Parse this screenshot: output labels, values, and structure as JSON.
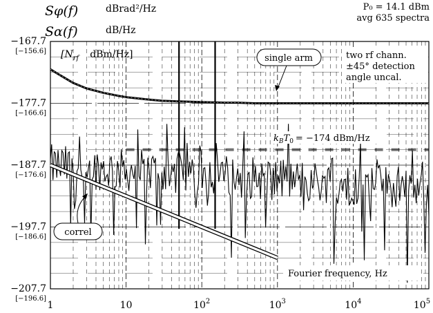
{
  "chart_data": {
    "type": "line",
    "x_scale": "log",
    "xlim": [
      1,
      100000
    ],
    "ylim": [
      -207.7,
      -167.7
    ],
    "grid": true,
    "header": {
      "s_phi_symbol": "Sφ(f)",
      "s_phi_unit": "dBrad²/Hz",
      "s_alpha_symbol": "Sα(f)",
      "s_alpha_unit": "dB/Hz",
      "p0": "P₀ = 14.1 dBm",
      "avg": "avg 635 spectra"
    },
    "y_ticks": [
      {
        "value": -167.7,
        "label": "−167.7",
        "sublabel": "[−156.6]"
      },
      {
        "value": -177.7,
        "label": "−177.7",
        "sublabel": "[−166.6]"
      },
      {
        "value": -187.7,
        "label": "−187.7",
        "sublabel": "[−176.6]"
      },
      {
        "value": -197.7,
        "label": "−197.7",
        "sublabel": "[−186.6]"
      },
      {
        "value": -207.7,
        "label": "−207.7",
        "sublabel": "[−196.6]"
      }
    ],
    "x_ticks": [
      {
        "value": 1,
        "base": "1",
        "exp": ""
      },
      {
        "value": 10,
        "base": "10",
        "exp": ""
      },
      {
        "value": 100,
        "base": "10",
        "exp": "2"
      },
      {
        "value": 1000,
        "base": "10",
        "exp": "3"
      },
      {
        "value": 10000,
        "base": "10",
        "exp": "4"
      },
      {
        "value": 100000,
        "base": "10",
        "exp": "5"
      }
    ],
    "nrf_label": "[N",
    "nrf_sub": "rf",
    "nrf_unit": "dBm/Hz]",
    "xlabel": "Fourier frequency, Hz",
    "annotations": {
      "single_arm": "single arm",
      "correl": "correl",
      "two_rf_1": "two rf chann.",
      "two_rf_2": "±45° detection",
      "two_rf_3": "angle uncal.",
      "kbt0": "kBT0 = −174 dBm/Hz",
      "kbt0_k": "k",
      "kbt0_B": "B",
      "kbt0_T": "T",
      "kbt0_0": "0",
      "kbt0_rest": "= −174 dBm/Hz"
    },
    "series": [
      {
        "name": "single arm",
        "x": [
          1,
          1.2,
          1.5,
          2,
          3,
          5,
          8,
          10,
          20,
          30,
          50,
          100,
          200,
          300,
          500,
          1000,
          3000,
          10000,
          30000,
          100000
        ],
        "y": [
          -172.2,
          -172.8,
          -173.5,
          -174.4,
          -175.3,
          -176.0,
          -176.5,
          -176.7,
          -177.1,
          -177.3,
          -177.4,
          -177.5,
          -177.6,
          -177.6,
          -177.7,
          -177.7,
          -177.7,
          -177.7,
          -177.7,
          -177.7
        ]
      },
      {
        "name": "correl",
        "x": [
          1,
          10,
          100,
          1000
        ],
        "y": [
          -187.7,
          -192.7,
          -197.7,
          -202.7
        ]
      },
      {
        "name": "kBT0",
        "x": [
          10,
          100000
        ],
        "y": [
          -185.2,
          -185.2
        ]
      },
      {
        "name": "correlated spectrum",
        "x_start": 1,
        "x_end": 100000,
        "points": 300,
        "mean_start": -187.8,
        "mean_end": -191.5,
        "spurs": [
          {
            "x": 50,
            "y": -167.7
          },
          {
            "x": 150,
            "y": -167.7
          }
        ]
      }
    ]
  }
}
